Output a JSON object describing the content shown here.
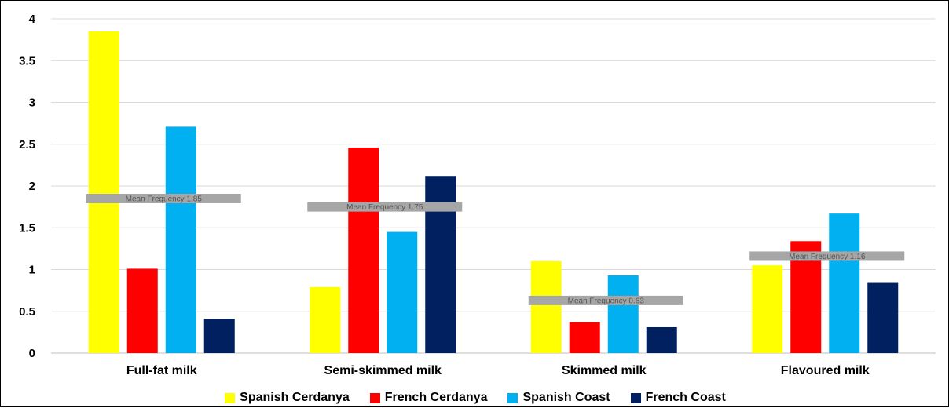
{
  "chart_data": {
    "type": "bar",
    "categories": [
      "Full-fat milk",
      "Semi-skimmed milk",
      "Skimmed milk",
      "Flavoured milk"
    ],
    "series": [
      {
        "name": "Spanish Cerdanya",
        "color": "#FFFF00",
        "values": [
          3.85,
          0.79,
          1.1,
          1.05
        ]
      },
      {
        "name": "French Cerdanya",
        "color": "#FF0000",
        "values": [
          1.01,
          2.46,
          0.37,
          1.34
        ]
      },
      {
        "name": "Spanish Coast",
        "color": "#00B0F0",
        "values": [
          2.71,
          1.45,
          0.93,
          1.67
        ]
      },
      {
        "name": "French Coast",
        "color": "#002060",
        "values": [
          0.41,
          2.12,
          0.31,
          0.84
        ]
      }
    ],
    "means": [
      {
        "label": "Mean Frequency 1.85",
        "value": 1.85
      },
      {
        "label": "Mean Frequency 1.75",
        "value": 1.75
      },
      {
        "label": "Mean Frequency 0.63",
        "value": 0.63
      },
      {
        "label": "Mean Frequency 1.16",
        "value": 1.16
      }
    ],
    "mean_color": "#A6A6A6",
    "y_ticks": [
      "0",
      "0.5",
      "1",
      "1.5",
      "2",
      "2.5",
      "3",
      "3.5",
      "4"
    ],
    "ylim": [
      0,
      4
    ],
    "grid": true,
    "legend_position": "bottom",
    "title": "",
    "xlabel": "",
    "ylabel": ""
  }
}
